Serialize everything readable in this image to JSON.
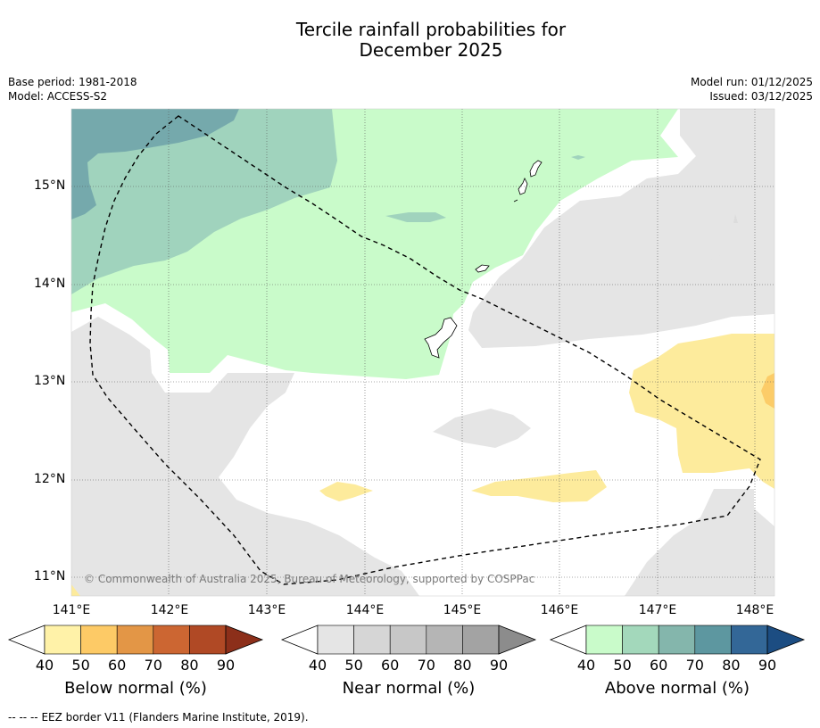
{
  "header": {
    "title_line1": "Tercile rainfall probabilities for",
    "title_line2": "December 2025",
    "base_period": "Base period: 1981-2018",
    "model": "Model: ACCESS-S2",
    "model_run": "Model run: 01/12/2025",
    "issued": "Issued: 03/12/2025"
  },
  "map": {
    "lat_labels": [
      "15°N",
      "14°N",
      "13°N",
      "12°N",
      "11°N"
    ],
    "lon_labels": [
      "141°E",
      "142°E",
      "143°E",
      "144°E",
      "145°E",
      "146°E",
      "147°E",
      "148°E"
    ],
    "copyright": "© Commonwealth of Australia 2025, Bureau of Meteorology, supported by COSPPac",
    "colors": {
      "near_normal_40": "#e5e5e5",
      "above_normal_40": "#c9fbca",
      "above_normal_50": "#a0d3bd",
      "above_normal_60": "#75a9ac",
      "below_normal_40": "#fdeb9c",
      "below_normal_50": "#fccc68",
      "eez_border": "#000000"
    }
  },
  "colorbars": [
    {
      "label": "Below normal (%)",
      "ticks": [
        "40",
        "50",
        "60",
        "70",
        "80",
        "90"
      ],
      "colors": [
        "#fff2a8",
        "#fdca66",
        "#e39646",
        "#cc6632",
        "#b04925",
        "#8c2f1a"
      ]
    },
    {
      "label": "Near normal (%)",
      "ticks": [
        "40",
        "50",
        "60",
        "70",
        "80",
        "90"
      ],
      "colors": [
        "#e5e5e5",
        "#d6d6d6",
        "#c7c7c7",
        "#b5b5b5",
        "#a3a3a3",
        "#8c8c8c"
      ]
    },
    {
      "label": "Above normal (%)",
      "ticks": [
        "40",
        "50",
        "60",
        "70",
        "80",
        "90"
      ],
      "colors": [
        "#c9fbca",
        "#a3d8bb",
        "#84b6ac",
        "#5d97a0",
        "#336797",
        "#1c4d82"
      ]
    }
  ],
  "footer": {
    "legend_symbol": "--  --  --",
    "legend_text": "EEZ border V11 (Flanders Marine Institute, 2019)."
  }
}
